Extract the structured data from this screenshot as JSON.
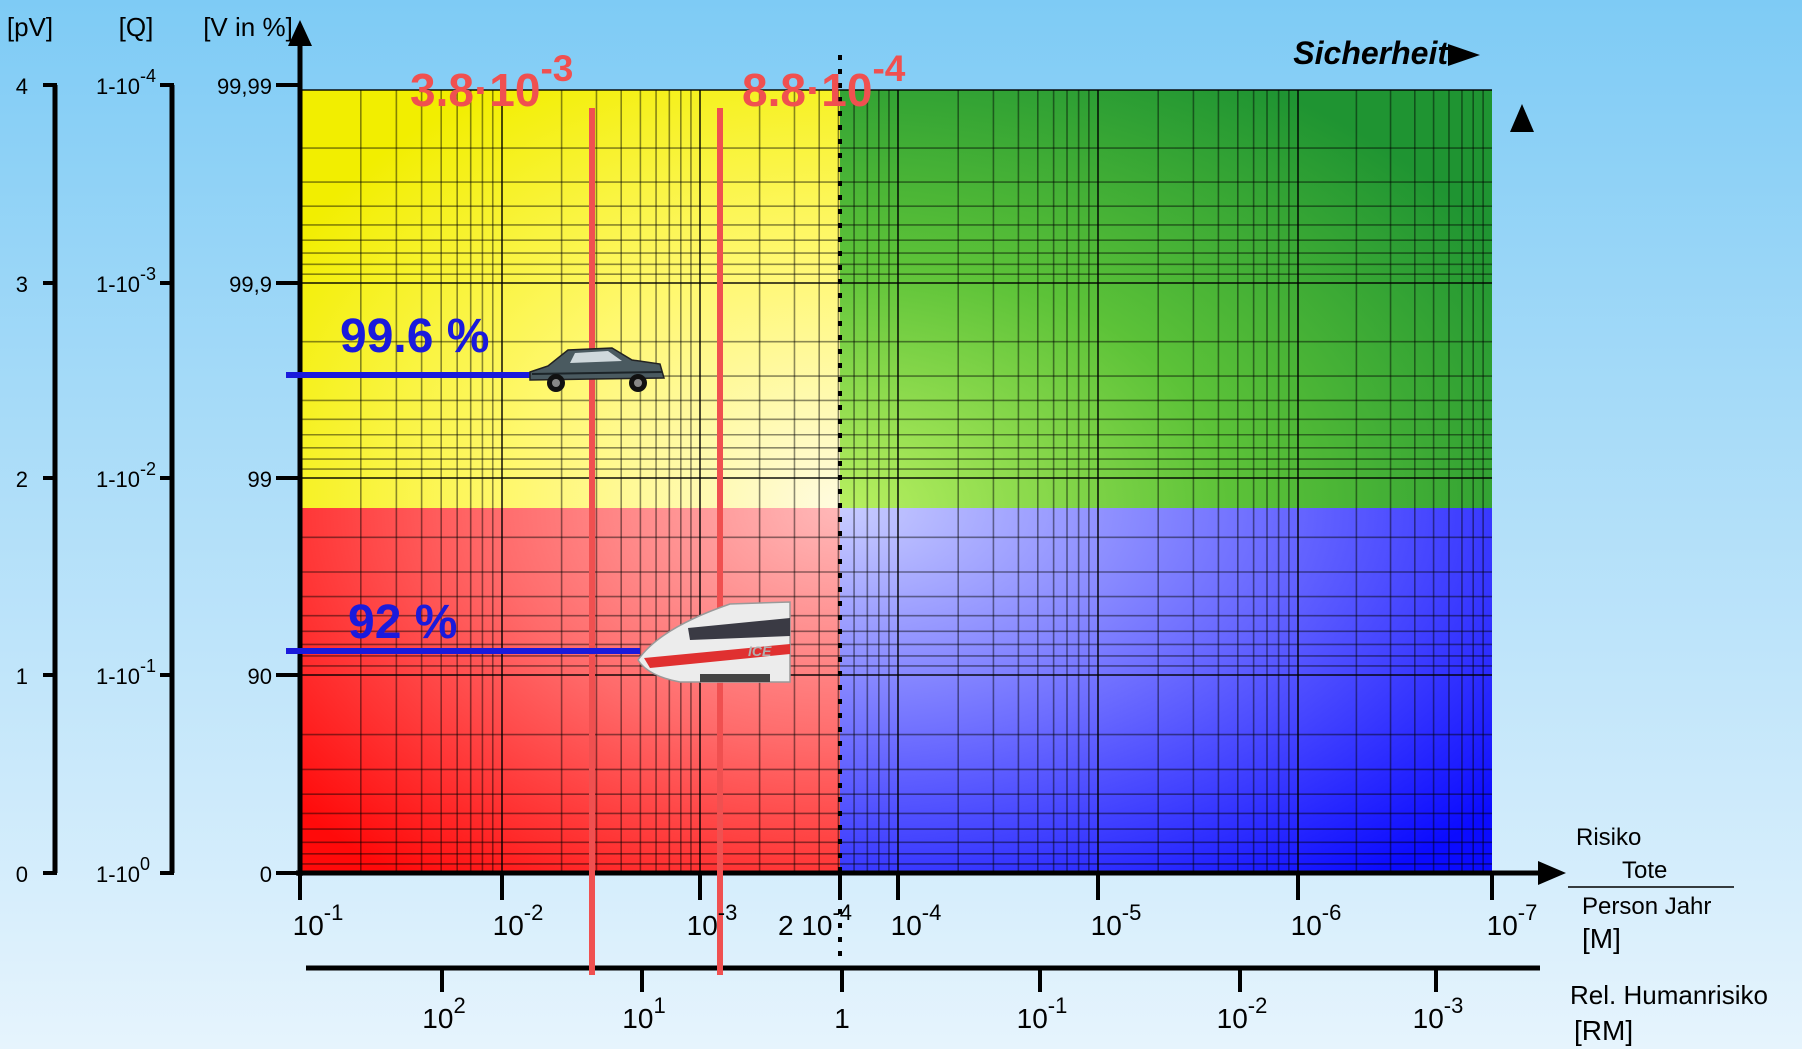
{
  "axes": {
    "pv": {
      "unit": "[pV]",
      "ticks": [
        "4",
        "3",
        "2",
        "1",
        "0"
      ]
    },
    "q": {
      "unit": "[Q]",
      "ticks": [
        {
          "base": "1-10",
          "exp": "-4"
        },
        {
          "base": "1-10",
          "exp": "-3"
        },
        {
          "base": "1-10",
          "exp": "-2"
        },
        {
          "base": "1-10",
          "exp": "-1"
        },
        {
          "base": "1-10",
          "exp": "0"
        }
      ]
    },
    "v": {
      "unit": "[V in %]",
      "ticks": [
        "99,99",
        "99,9",
        "99",
        "90",
        "0"
      ]
    },
    "risk": {
      "ticks": [
        {
          "base": "10",
          "exp": "-1"
        },
        {
          "base": "10",
          "exp": "-2"
        },
        {
          "base": "10",
          "exp": "-3"
        },
        {
          "base": "2 10",
          "exp": "-4"
        },
        {
          "base": "10",
          "exp": "-4"
        },
        {
          "base": "10",
          "exp": "-5"
        },
        {
          "base": "10",
          "exp": "-6"
        },
        {
          "base": "10",
          "exp": "-7"
        }
      ],
      "label_top": "Risiko",
      "frac_num": "Tote",
      "frac_den": "Person  Jahr",
      "unit": "[M]"
    },
    "rel": {
      "ticks": [
        {
          "base": "10",
          "exp": "2"
        },
        {
          "base": "10",
          "exp": "1"
        },
        {
          "base": "1",
          "exp": ""
        },
        {
          "base": "10",
          "exp": "-1"
        },
        {
          "base": "10",
          "exp": "-2"
        },
        {
          "base": "10",
          "exp": "-3"
        }
      ],
      "label": "Rel. Humanrisiko",
      "unit": "[RM]"
    }
  },
  "sicherheit_label": "Sicherheit",
  "markers": [
    {
      "base": "3.8·10",
      "exp": "-3",
      "color": "#f05050"
    },
    {
      "base": "8.8·10",
      "exp": "-4",
      "color": "#f05050"
    }
  ],
  "levels": [
    {
      "label": "99.6 %",
      "vehicle": "car-image",
      "color": "#1a1adc"
    },
    {
      "label": "92 %",
      "vehicle": "train-image",
      "color": "#1a1adc"
    }
  ],
  "quadrants": [
    {
      "name": "yellow",
      "color": "#f2f000"
    },
    {
      "name": "green",
      "color": "#2a9e2a"
    },
    {
      "name": "red",
      "color": "#ff1a1a"
    },
    {
      "name": "blue",
      "color": "#1010ff"
    }
  ]
}
